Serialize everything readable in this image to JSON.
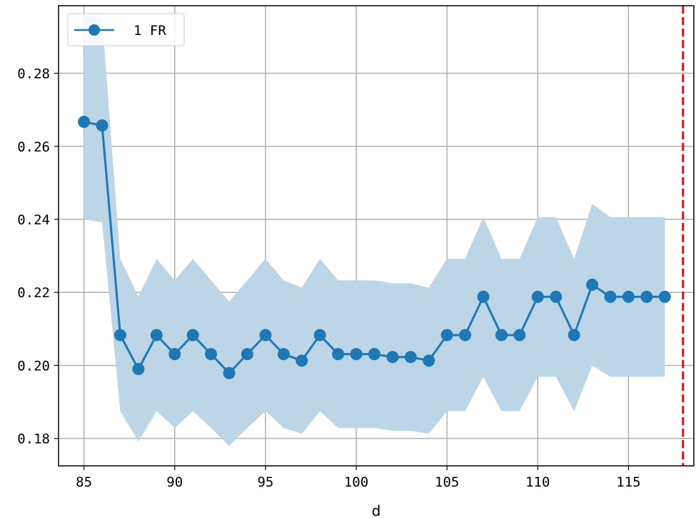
{
  "chart_data": {
    "type": "line",
    "title": "",
    "xlabel": "d",
    "ylabel": "",
    "xlim": [
      83.6,
      118.6
    ],
    "ylim": [
      0.1725,
      0.2985
    ],
    "xticks": [
      85,
      90,
      95,
      100,
      105,
      110,
      115
    ],
    "xtick_labels": [
      "85",
      "90",
      "95",
      "100",
      "105",
      "110",
      "115"
    ],
    "yticks": [
      0.18,
      0.2,
      0.22,
      0.24,
      0.26,
      0.28
    ],
    "ytick_labels": [
      "0.18",
      "0.20",
      "0.22",
      "0.24",
      "0.26",
      "0.28"
    ],
    "grid": true,
    "legend_position": "top-left",
    "series_color": "#1f77b4",
    "band_color": "#bcd5e7",
    "vline": {
      "x": 118,
      "color": "#ff0000",
      "style": "dashed"
    },
    "series": [
      {
        "name": "1 FR",
        "x": [
          85,
          86,
          87,
          88,
          89,
          90,
          91,
          92,
          93,
          94,
          95,
          96,
          97,
          98,
          99,
          100,
          101,
          102,
          103,
          104,
          105,
          106,
          107,
          108,
          109,
          110,
          111,
          112,
          113,
          114,
          115,
          116,
          117
        ],
        "y": [
          0.2667,
          0.2657,
          0.2083,
          0.199,
          0.2083,
          0.2031,
          0.2083,
          0.2031,
          0.1979,
          0.2031,
          0.2083,
          0.2031,
          0.2013,
          0.2083,
          0.2031,
          0.2031,
          0.2031,
          0.2023,
          0.2023,
          0.2013,
          0.2083,
          0.2083,
          0.2188,
          0.2083,
          0.2083,
          0.2188,
          0.2188,
          0.2083,
          0.2221,
          0.2188,
          0.2188,
          0.2188,
          0.2188
        ],
        "lower": [
          0.24,
          0.2392,
          0.1875,
          0.1792,
          0.1875,
          0.1829,
          0.1875,
          0.1829,
          0.1779,
          0.1829,
          0.1875,
          0.1829,
          0.1813,
          0.1875,
          0.1829,
          0.1829,
          0.1829,
          0.1821,
          0.1821,
          0.1813,
          0.1875,
          0.1875,
          0.1969,
          0.1875,
          0.1875,
          0.1969,
          0.1969,
          0.1875,
          0.2,
          0.1969,
          0.1969,
          0.1969,
          0.1969
        ],
        "upper": [
          0.296,
          0.295,
          0.2292,
          0.2188,
          0.2292,
          0.2233,
          0.2292,
          0.2233,
          0.2175,
          0.2233,
          0.2292,
          0.2233,
          0.2213,
          0.2292,
          0.2233,
          0.2233,
          0.2233,
          0.2225,
          0.2225,
          0.2213,
          0.2292,
          0.2292,
          0.2406,
          0.2292,
          0.2292,
          0.2406,
          0.2406,
          0.2292,
          0.2442,
          0.2406,
          0.2406,
          0.2406,
          0.2406
        ]
      }
    ]
  }
}
